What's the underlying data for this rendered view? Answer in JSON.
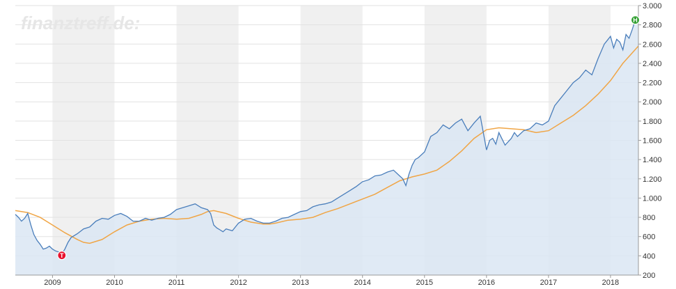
{
  "watermark": "finanztreff.de:",
  "chart_data": {
    "type": "line",
    "title": "",
    "xlabel": "",
    "ylabel": "",
    "xlim": [
      2008.4,
      2018.45
    ],
    "ylim": [
      200,
      3000
    ],
    "yticks": [
      200,
      400,
      600,
      800,
      1000,
      1200,
      1400,
      1600,
      1800,
      2000,
      2200,
      2400,
      2600,
      2800,
      3000
    ],
    "ytick_labels": [
      "200",
      "400",
      "600",
      "800",
      "1.000",
      "1.200",
      "1.400",
      "1.600",
      "1.800",
      "2.000",
      "2.200",
      "2.400",
      "2.600",
      "2.800",
      "3.000"
    ],
    "xticks": [
      2009,
      2010,
      2011,
      2012,
      2013,
      2014,
      2015,
      2016,
      2017,
      2018
    ],
    "xtick_labels": [
      "2009",
      "2010",
      "2011",
      "2012",
      "2013",
      "2014",
      "2015",
      "2016",
      "2017",
      "2018"
    ],
    "y_axis_position": "right",
    "band_years_shaded": [
      2009,
      2011,
      2013,
      2015,
      2017
    ],
    "colors": {
      "price": "#4a7ebb",
      "area": "#dbe6f3",
      "average": "#f0a545",
      "band": "#f0f0f0",
      "low_marker": "#e8112d",
      "high_marker": "#2f9e2f"
    },
    "series": [
      {
        "style": "price",
        "x": [
          2008.4,
          2008.45,
          2008.5,
          2008.55,
          2008.6,
          2008.65,
          2008.7,
          2008.75,
          2008.8,
          2008.85,
          2008.9,
          2008.95,
          2009.0,
          2009.05,
          2009.1,
          2009.15,
          2009.2,
          2009.25,
          2009.3,
          2009.35,
          2009.4,
          2009.5,
          2009.6,
          2009.7,
          2009.8,
          2009.9,
          2010.0,
          2010.1,
          2010.2,
          2010.3,
          2010.4,
          2010.5,
          2010.6,
          2010.7,
          2010.8,
          2010.9,
          2011.0,
          2011.1,
          2011.2,
          2011.3,
          2011.4,
          2011.5,
          2011.55,
          2011.6,
          2011.65,
          2011.7,
          2011.75,
          2011.8,
          2011.9,
          2012.0,
          2012.1,
          2012.2,
          2012.3,
          2012.4,
          2012.5,
          2012.6,
          2012.7,
          2012.8,
          2012.9,
          2013.0,
          2013.1,
          2013.2,
          2013.3,
          2013.4,
          2013.5,
          2013.6,
          2013.7,
          2013.8,
          2013.9,
          2014.0,
          2014.1,
          2014.2,
          2014.3,
          2014.4,
          2014.5,
          2014.6,
          2014.65,
          2014.7,
          2014.75,
          2014.8,
          2014.85,
          2014.9,
          2015.0,
          2015.1,
          2015.2,
          2015.3,
          2015.4,
          2015.5,
          2015.6,
          2015.7,
          2015.8,
          2015.9,
          2016.0,
          2016.05,
          2016.1,
          2016.15,
          2016.2,
          2016.3,
          2016.4,
          2016.45,
          2016.5,
          2016.6,
          2016.7,
          2016.8,
          2016.9,
          2017.0,
          2017.1,
          2017.2,
          2017.3,
          2017.4,
          2017.5,
          2017.6,
          2017.7,
          2017.8,
          2017.9,
          2018.0,
          2018.05,
          2018.1,
          2018.15,
          2018.2,
          2018.25,
          2018.3,
          2018.35,
          2018.4,
          2018.45
        ],
        "y": [
          830,
          800,
          760,
          790,
          840,
          720,
          620,
          560,
          520,
          470,
          480,
          500,
          470,
          450,
          440,
          420,
          470,
          540,
          590,
          610,
          630,
          680,
          700,
          760,
          790,
          780,
          820,
          840,
          810,
          760,
          760,
          790,
          770,
          790,
          800,
          830,
          880,
          900,
          920,
          940,
          900,
          880,
          840,
          720,
          690,
          670,
          650,
          680,
          660,
          740,
          780,
          790,
          760,
          740,
          740,
          760,
          790,
          800,
          830,
          860,
          870,
          910,
          930,
          940,
          960,
          1000,
          1040,
          1080,
          1120,
          1170,
          1190,
          1230,
          1240,
          1270,
          1290,
          1230,
          1200,
          1130,
          1250,
          1340,
          1400,
          1420,
          1480,
          1640,
          1680,
          1760,
          1720,
          1780,
          1820,
          1700,
          1780,
          1850,
          1500,
          1600,
          1620,
          1560,
          1680,
          1550,
          1620,
          1680,
          1640,
          1700,
          1720,
          1780,
          1760,
          1800,
          1960,
          2040,
          2120,
          2200,
          2250,
          2330,
          2280,
          2450,
          2600,
          2680,
          2560,
          2650,
          2620,
          2540,
          2700,
          2660,
          2750,
          2850,
          2830
        ]
      },
      {
        "style": "average",
        "x": [
          2008.4,
          2008.6,
          2008.8,
          2009.0,
          2009.2,
          2009.4,
          2009.5,
          2009.6,
          2009.8,
          2010.0,
          2010.2,
          2010.4,
          2010.6,
          2010.8,
          2011.0,
          2011.2,
          2011.4,
          2011.5,
          2011.6,
          2011.8,
          2012.0,
          2012.2,
          2012.4,
          2012.5,
          2012.6,
          2012.8,
          2013.0,
          2013.2,
          2013.4,
          2013.6,
          2013.8,
          2014.0,
          2014.2,
          2014.4,
          2014.6,
          2014.8,
          2015.0,
          2015.2,
          2015.4,
          2015.6,
          2015.8,
          2016.0,
          2016.2,
          2016.4,
          2016.6,
          2016.8,
          2017.0,
          2017.2,
          2017.4,
          2017.6,
          2017.8,
          2018.0,
          2018.2,
          2018.45
        ],
        "y": [
          870,
          850,
          800,
          720,
          640,
          570,
          540,
          530,
          570,
          650,
          720,
          760,
          780,
          790,
          780,
          790,
          830,
          860,
          870,
          840,
          790,
          750,
          730,
          730,
          740,
          770,
          780,
          800,
          850,
          890,
          940,
          990,
          1040,
          1110,
          1180,
          1220,
          1250,
          1290,
          1380,
          1490,
          1620,
          1710,
          1730,
          1720,
          1710,
          1680,
          1700,
          1780,
          1860,
          1960,
          2080,
          2220,
          2400,
          2580
        ]
      }
    ],
    "markers": [
      {
        "label": "T",
        "x": 2009.15,
        "y": 405,
        "kind": "low"
      },
      {
        "label": "H",
        "x": 2018.4,
        "y": 2850,
        "kind": "high"
      }
    ]
  }
}
